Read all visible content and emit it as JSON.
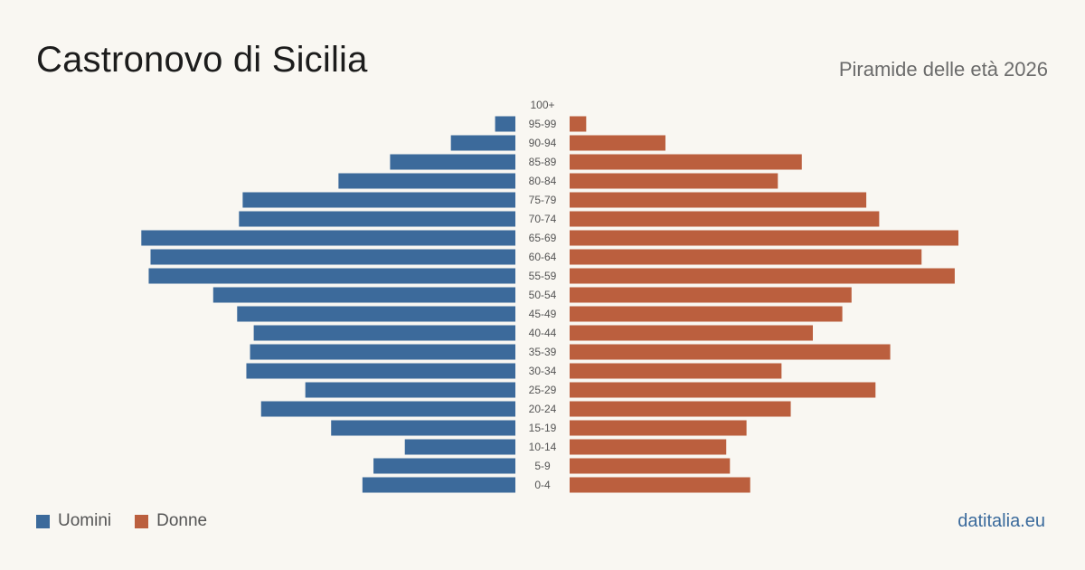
{
  "title": "Castronovo di Sicilia",
  "subtitle": "Piramide delle età 2026",
  "source": "datitalia.eu",
  "colors": {
    "men": "#3c6a9b",
    "women": "#bb5f3e",
    "label": "#555555"
  },
  "chart_data": {
    "type": "bar",
    "orientation": "horizontal-pyramid",
    "categories": [
      "0-4",
      "5-9",
      "10-14",
      "15-19",
      "20-24",
      "25-29",
      "30-34",
      "35-39",
      "40-44",
      "45-49",
      "50-54",
      "55-59",
      "60-64",
      "65-69",
      "70-74",
      "75-79",
      "80-84",
      "85-89",
      "90-94",
      "95-99",
      "100+"
    ],
    "series": [
      {
        "name": "Uomini",
        "color": "#3c6a9b",
        "values": [
          83,
          77,
          60,
          100,
          138,
          114,
          146,
          144,
          142,
          151,
          164,
          199,
          198,
          203,
          150,
          148,
          96,
          68,
          35,
          11,
          0
        ]
      },
      {
        "name": "Donne",
        "color": "#bb5f3e",
        "values": [
          98,
          87,
          85,
          96,
          120,
          166,
          115,
          174,
          132,
          148,
          153,
          209,
          191,
          211,
          168,
          161,
          113,
          126,
          52,
          9,
          0
        ]
      }
    ],
    "legend": "bottom-left",
    "grid": false
  }
}
